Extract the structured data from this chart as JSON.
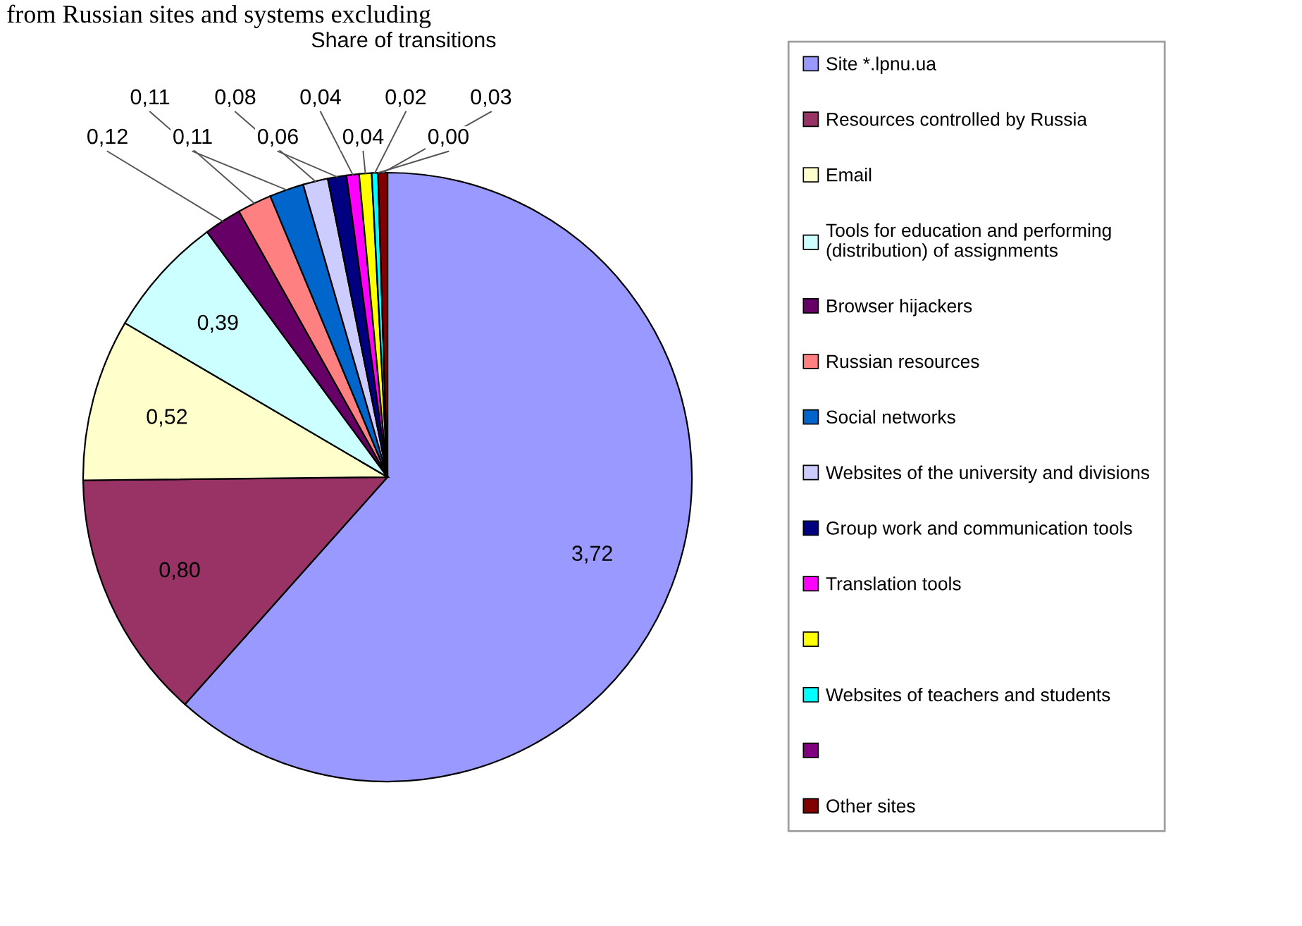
{
  "chart_data": {
    "type": "pie",
    "title": "Share of transitions",
    "annotations": [
      "from Russian sites and systems excluding"
    ],
    "categories": [
      "Site *.lpnu.ua",
      "Resources controlled by Russia",
      "Email",
      "Tools for education and performing\n(distribution) of assignments",
      "Browser hijackers",
      "Russian resources",
      "Social networks",
      "Websites of the university and divisions",
      "Group work and communication tools",
      "Translation tools",
      null,
      "Websites of teachers and students",
      null,
      "Other sites"
    ],
    "values": [
      3.72,
      0.8,
      0.52,
      0.39,
      0.12,
      0.11,
      0.11,
      0.08,
      0.06,
      0.04,
      0.04,
      0.02,
      0.0,
      0.03
    ],
    "value_labels": [
      "3,72",
      "0,80",
      "0,52",
      "0,39",
      "0,12",
      "0,11",
      "0,11",
      "0,08",
      "0,06",
      "0,04",
      "0,04",
      "0,02",
      "0,00",
      "0,03"
    ],
    "colors": [
      "#9999ff",
      "#993366",
      "#ffffcc",
      "#ccffff",
      "#660066",
      "#ff8080",
      "#0066cc",
      "#ccccff",
      "#000080",
      "#ff00ff",
      "#ffff00",
      "#00ffff",
      "#800080",
      "#800000"
    ],
    "legend": "right"
  }
}
